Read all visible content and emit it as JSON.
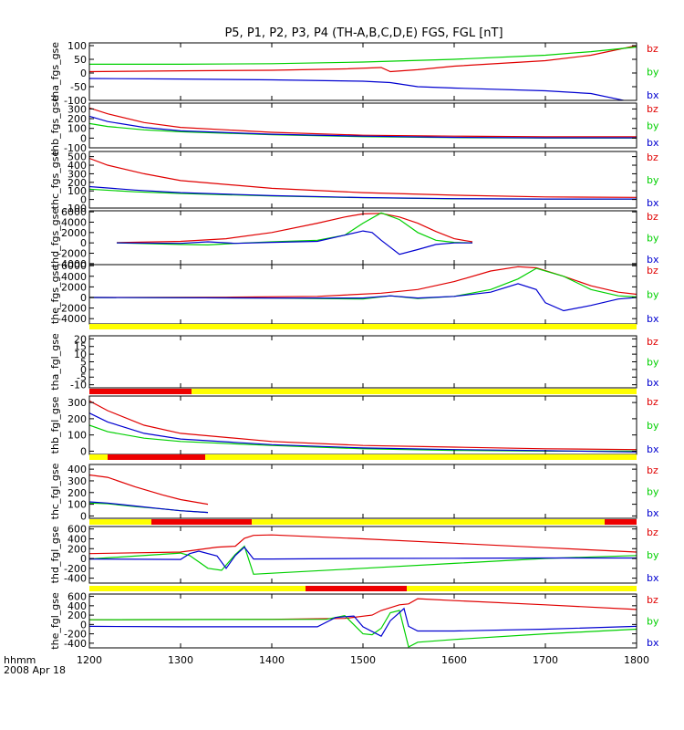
{
  "title": "P5, P1, P2, P3, P4 (TH-A,B,C,D,E) FGS, FGL [nT]",
  "time_label": "hhmm",
  "date_label": "2008 Apr 18",
  "colors": {
    "bz": "#e00000",
    "by": "#00d000",
    "bx": "#0000d0",
    "bar_yellow": "#ffff00",
    "bar_red": "#ee0000"
  },
  "chart_data": [
    {
      "type": "line",
      "ylabel": "tha_fgs_gse",
      "xlim": [
        1200,
        1800
      ],
      "ylim": [
        -100,
        110
      ],
      "yticks": [
        100,
        50,
        0,
        -50,
        -100
      ],
      "series": [
        {
          "name": "bz",
          "color": "red",
          "x": [
            1200,
            1300,
            1400,
            1480,
            1520,
            1530,
            1560,
            1600,
            1700,
            1750,
            1800
          ],
          "values": [
            5,
            8,
            10,
            15,
            20,
            5,
            12,
            25,
            45,
            65,
            100
          ]
        },
        {
          "name": "by",
          "color": "green",
          "x": [
            1200,
            1300,
            1400,
            1500,
            1600,
            1700,
            1750,
            1800
          ],
          "values": [
            32,
            32,
            34,
            40,
            50,
            65,
            78,
            95
          ]
        },
        {
          "name": "bx",
          "color": "blue",
          "x": [
            1200,
            1300,
            1400,
            1500,
            1530,
            1560,
            1600,
            1700,
            1750,
            1800
          ],
          "values": [
            -20,
            -22,
            -25,
            -30,
            -35,
            -50,
            -55,
            -65,
            -75,
            -110
          ]
        }
      ]
    },
    {
      "type": "line",
      "ylabel": "thb_fgs_gse",
      "xlim": [
        1200,
        1800
      ],
      "ylim": [
        -100,
        360
      ],
      "yticks": [
        300,
        200,
        100,
        0,
        -100
      ],
      "series": [
        {
          "name": "bz",
          "color": "red",
          "x": [
            1200,
            1220,
            1260,
            1300,
            1400,
            1500,
            1600,
            1700,
            1800
          ],
          "values": [
            310,
            250,
            160,
            110,
            60,
            30,
            20,
            15,
            15
          ]
        },
        {
          "name": "by",
          "color": "green",
          "x": [
            1200,
            1220,
            1260,
            1300,
            1400,
            1500,
            1600,
            1700,
            1800
          ],
          "values": [
            150,
            120,
            85,
            65,
            35,
            15,
            5,
            0,
            0
          ]
        },
        {
          "name": "bx",
          "color": "blue",
          "x": [
            1200,
            1220,
            1260,
            1300,
            1400,
            1500,
            1600,
            1700,
            1800
          ],
          "values": [
            225,
            170,
            110,
            75,
            40,
            20,
            8,
            3,
            3
          ]
        }
      ]
    },
    {
      "type": "line",
      "ylabel": "thc_fgs_gse",
      "xlim": [
        1200,
        1800
      ],
      "ylim": [
        -100,
        560
      ],
      "yticks": [
        500,
        400,
        300,
        200,
        100,
        0,
        -100
      ],
      "series": [
        {
          "name": "bz",
          "color": "red",
          "x": [
            1200,
            1220,
            1260,
            1300,
            1400,
            1500,
            1600,
            1700,
            1800
          ],
          "values": [
            480,
            400,
            300,
            220,
            130,
            80,
            50,
            30,
            25
          ]
        },
        {
          "name": "by",
          "color": "green",
          "x": [
            1200,
            1250,
            1300,
            1400,
            1500,
            1600,
            1700,
            1800
          ],
          "values": [
            120,
            90,
            70,
            40,
            20,
            8,
            5,
            5
          ]
        },
        {
          "name": "bx",
          "color": "blue",
          "x": [
            1200,
            1250,
            1300,
            1400,
            1500,
            1600,
            1700,
            1800
          ],
          "values": [
            150,
            110,
            80,
            45,
            22,
            10,
            5,
            5
          ]
        }
      ]
    },
    {
      "type": "line",
      "ylabel": "thd_fgs_gse",
      "xlim": [
        1200,
        1800
      ],
      "ylim": [
        -4200,
        6200
      ],
      "yticks": [
        6000,
        4000,
        2000,
        0,
        -2000,
        -4000
      ],
      "series": [
        {
          "name": "bz",
          "color": "red",
          "x": [
            1230,
            1300,
            1350,
            1400,
            1450,
            1480,
            1500,
            1520,
            1540,
            1560,
            1580,
            1600,
            1620
          ],
          "values": [
            50,
            300,
            800,
            2000,
            3800,
            5000,
            5600,
            5700,
            5000,
            3800,
            2200,
            800,
            200
          ]
        },
        {
          "name": "by",
          "color": "green",
          "x": [
            1230,
            1300,
            1330,
            1360,
            1400,
            1450,
            1480,
            1500,
            1520,
            1540,
            1560,
            1580,
            1600,
            1620
          ],
          "values": [
            0,
            -300,
            -400,
            -100,
            200,
            500,
            1500,
            3800,
            5800,
            4500,
            2000,
            500,
            100,
            0
          ]
        },
        {
          "name": "bx",
          "color": "blue",
          "x": [
            1230,
            1300,
            1330,
            1360,
            1400,
            1450,
            1480,
            1500,
            1510,
            1520,
            1540,
            1560,
            1580,
            1600,
            1620
          ],
          "values": [
            0,
            -100,
            200,
            -100,
            100,
            300,
            1500,
            2300,
            2000,
            500,
            -2200,
            -1300,
            -300,
            0,
            0
          ]
        }
      ]
    },
    {
      "type": "line",
      "ylabel": "the_fgs_gse",
      "xlim": [
        1200,
        1800
      ],
      "ylim": [
        -5000,
        6200
      ],
      "yticks": [
        6000,
        4000,
        2000,
        0,
        -2000,
        -4000
      ],
      "series": [
        {
          "name": "bz",
          "color": "red",
          "x": [
            1200,
            1350,
            1450,
            1520,
            1560,
            1600,
            1640,
            1670,
            1690,
            1720,
            1750,
            1780,
            1800
          ],
          "values": [
            0,
            50,
            200,
            800,
            1500,
            3000,
            5000,
            5800,
            5600,
            4000,
            2200,
            1000,
            600
          ]
        },
        {
          "name": "by",
          "color": "green",
          "x": [
            1200,
            1400,
            1500,
            1530,
            1560,
            1600,
            1640,
            1670,
            1690,
            1720,
            1750,
            1780,
            1800
          ],
          "values": [
            0,
            -100,
            -300,
            300,
            -200,
            200,
            1500,
            3500,
            5500,
            4000,
            1500,
            300,
            100
          ]
        },
        {
          "name": "bx",
          "color": "blue",
          "x": [
            1200,
            1400,
            1500,
            1530,
            1560,
            1600,
            1640,
            1670,
            1690,
            1700,
            1720,
            1750,
            1780,
            1800
          ],
          "values": [
            0,
            -100,
            -100,
            300,
            -100,
            200,
            1000,
            2600,
            1500,
            -1000,
            -2500,
            -1500,
            -300,
            0
          ]
        }
      ]
    },
    {
      "type": "line",
      "ylabel": "tha_fgl_gse",
      "xlim": [
        1200,
        1800
      ],
      "ylim": [
        -12,
        22
      ],
      "yticks": [
        20,
        15,
        10,
        5,
        0,
        -5,
        -10
      ],
      "quality_bar": [
        {
          "from": 1200,
          "to": 1800,
          "color": "yellow"
        }
      ],
      "series": []
    },
    {
      "type": "line",
      "ylabel": "thb_fgl_gse",
      "xlim": [
        1200,
        1800
      ],
      "ylim": [
        -20,
        340
      ],
      "yticks": [
        300,
        200,
        100,
        0
      ],
      "quality_bar": [
        {
          "from": 1200,
          "to": 1312,
          "color": "red"
        },
        {
          "from": 1312,
          "to": 1800,
          "color": "yellow"
        }
      ],
      "series": [
        {
          "name": "bz",
          "color": "red",
          "x": [
            1200,
            1220,
            1260,
            1300,
            1400,
            1500,
            1600,
            1700,
            1800
          ],
          "values": [
            310,
            250,
            160,
            110,
            60,
            35,
            25,
            15,
            10
          ]
        },
        {
          "name": "by",
          "color": "green",
          "x": [
            1200,
            1220,
            1260,
            1300,
            1400,
            1500,
            1600,
            1700,
            1800
          ],
          "values": [
            160,
            120,
            80,
            60,
            35,
            15,
            5,
            0,
            0
          ]
        },
        {
          "name": "bx",
          "color": "blue",
          "x": [
            1200,
            1220,
            1260,
            1300,
            1400,
            1500,
            1600,
            1700,
            1800
          ],
          "values": [
            235,
            180,
            110,
            75,
            40,
            20,
            10,
            3,
            -5
          ]
        }
      ]
    },
    {
      "type": "line",
      "ylabel": "thc_fgl_gse",
      "xlim": [
        1200,
        1800
      ],
      "ylim": [
        -20,
        440
      ],
      "yticks": [
        400,
        300,
        200,
        100,
        0
      ],
      "quality_bar": [
        {
          "from": 1200,
          "to": 1220,
          "color": "yellow"
        },
        {
          "from": 1220,
          "to": 1327,
          "color": "red"
        },
        {
          "from": 1327,
          "to": 1800,
          "color": "yellow"
        }
      ],
      "series": [
        {
          "name": "bz",
          "color": "red",
          "x": [
            1200,
            1220,
            1250,
            1280,
            1300,
            1330
          ],
          "values": [
            350,
            330,
            250,
            180,
            140,
            100
          ]
        },
        {
          "name": "by",
          "color": "green",
          "x": [
            1200,
            1220,
            1250,
            1280,
            1300,
            1330
          ],
          "values": [
            110,
            105,
            80,
            60,
            45,
            30
          ]
        },
        {
          "name": "bx",
          "color": "blue",
          "x": [
            1200,
            1220,
            1250,
            1280,
            1300,
            1330
          ],
          "values": [
            120,
            110,
            85,
            60,
            45,
            30
          ]
        }
      ]
    },
    {
      "type": "line",
      "ylabel": "thd_fgl_gse",
      "xlim": [
        1200,
        1800
      ],
      "ylim": [
        -500,
        650
      ],
      "yticks": [
        600,
        400,
        200,
        0,
        -200,
        -400
      ],
      "quality_bar": [
        {
          "from": 1200,
          "to": 1268,
          "color": "yellow"
        },
        {
          "from": 1268,
          "to": 1378,
          "color": "red"
        },
        {
          "from": 1378,
          "to": 1765,
          "color": "yellow"
        },
        {
          "from": 1765,
          "to": 1800,
          "color": "red"
        }
      ],
      "series": [
        {
          "name": "bz",
          "color": "red",
          "x": [
            1200,
            1300,
            1340,
            1360,
            1370,
            1380,
            1400,
            1500,
            1600,
            1700,
            1800
          ],
          "values": [
            100,
            130,
            230,
            250,
            410,
            470,
            480,
            400,
            310,
            220,
            130
          ]
        },
        {
          "name": "by",
          "color": "green",
          "x": [
            1200,
            1300,
            1310,
            1330,
            1345,
            1360,
            1370,
            1380,
            1400,
            1500,
            1600,
            1700,
            1800
          ],
          "values": [
            -10,
            110,
            60,
            -200,
            -240,
            80,
            250,
            -320,
            -300,
            -200,
            -100,
            0,
            60
          ]
        },
        {
          "name": "bx",
          "color": "blue",
          "x": [
            1200,
            1300,
            1310,
            1320,
            1340,
            1350,
            1360,
            1370,
            1380,
            1400,
            1500,
            1600,
            1700,
            1800
          ],
          "values": [
            -10,
            -20,
            100,
            150,
            50,
            -200,
            60,
            230,
            -10,
            -10,
            0,
            5,
            10,
            10
          ]
        }
      ]
    },
    {
      "type": "line",
      "ylabel": "the_fgl_gse",
      "xlim": [
        1200,
        1800
      ],
      "ylim": [
        -500,
        650
      ],
      "yticks": [
        600,
        400,
        200,
        0,
        -200,
        -400
      ],
      "quality_bar": [
        {
          "from": 1200,
          "to": 1437,
          "color": "yellow"
        },
        {
          "from": 1437,
          "to": 1548,
          "color": "red"
        },
        {
          "from": 1548,
          "to": 1800,
          "color": "yellow"
        }
      ],
      "series": [
        {
          "name": "bz",
          "color": "red",
          "x": [
            1200,
            1400,
            1480,
            1510,
            1520,
            1540,
            1550,
            1560,
            1600,
            1700,
            1800
          ],
          "values": [
            100,
            110,
            130,
            200,
            300,
            420,
            440,
            550,
            510,
            420,
            320
          ]
        },
        {
          "name": "by",
          "color": "green",
          "x": [
            1200,
            1460,
            1480,
            1500,
            1510,
            1520,
            1530,
            1540,
            1550,
            1560,
            1600,
            1700,
            1800
          ],
          "values": [
            100,
            110,
            190,
            -200,
            -220,
            -80,
            250,
            300,
            -480,
            -380,
            -320,
            -200,
            -100
          ]
        },
        {
          "name": "bx",
          "color": "blue",
          "x": [
            1200,
            1300,
            1450,
            1470,
            1490,
            1500,
            1520,
            1530,
            1545,
            1550,
            1560,
            1600,
            1700,
            1800
          ],
          "values": [
            -40,
            -50,
            -50,
            150,
            180,
            -50,
            -250,
            80,
            340,
            -40,
            -140,
            -140,
            -100,
            -40
          ]
        }
      ]
    }
  ]
}
